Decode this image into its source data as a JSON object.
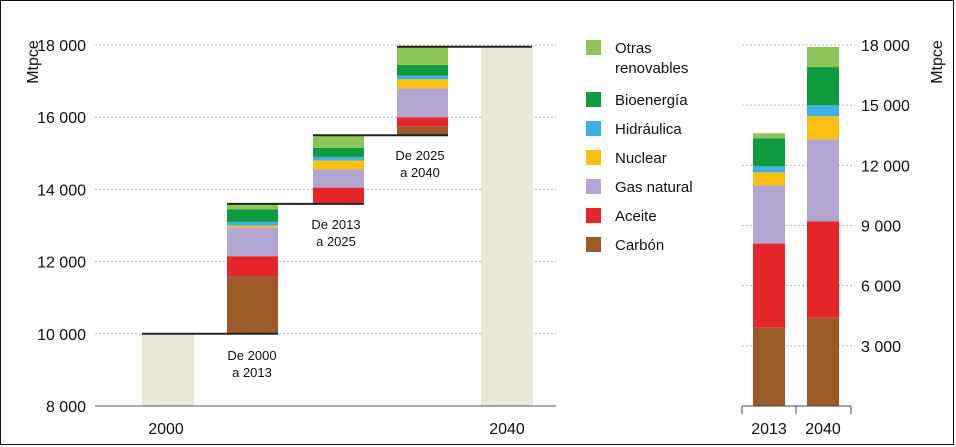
{
  "colors": {
    "carbon": "#9c5a28",
    "aceite": "#e4262b",
    "gas": "#b3a6d2",
    "nuclear": "#fcc012",
    "hidraulica": "#3db1e3",
    "bioenergia": "#0e9a3d",
    "otras": "#8cc55a",
    "total": "#e9e8db"
  },
  "legend": [
    {
      "key": "otras",
      "label_lines": [
        "Otras",
        "renovables"
      ]
    },
    {
      "key": "bioenergia",
      "label_lines": [
        "Bioenergía"
      ]
    },
    {
      "key": "hidraulica",
      "label_lines": [
        "Hidráulica"
      ]
    },
    {
      "key": "nuclear",
      "label_lines": [
        "Nuclear"
      ]
    },
    {
      "key": "gas",
      "label_lines": [
        "Gas natural"
      ]
    },
    {
      "key": "aceite",
      "label_lines": [
        "Aceite"
      ]
    },
    {
      "key": "carbon",
      "label_lines": [
        "Carbón"
      ]
    }
  ],
  "chart_data": [
    {
      "type": "bar",
      "subtype": "waterfall",
      "ylabel": "Mtpce",
      "ylim": [
        8000,
        18000
      ],
      "yticks": [
        "8 000",
        "10 000",
        "12 000",
        "14 000",
        "16 000",
        "18 000"
      ],
      "grid": true,
      "totals": [
        {
          "category": "2000",
          "value": 10000
        },
        {
          "category": "2040",
          "value": 17950
        }
      ],
      "steps": [
        {
          "label_lines": [
            "De 2000",
            "a 2013"
          ],
          "start": 10000,
          "segments": [
            {
              "key": "carbon",
              "value": 1600
            },
            {
              "key": "aceite",
              "value": 550
            },
            {
              "key": "gas",
              "value": 800
            },
            {
              "key": "nuclear",
              "value": 50
            },
            {
              "key": "hidraulica",
              "value": 100
            },
            {
              "key": "bioenergia",
              "value": 350
            },
            {
              "key": "otras",
              "value": 150
            }
          ]
        },
        {
          "label_lines": [
            "De 2013",
            "a 2025"
          ],
          "start": 13600,
          "segments": [
            {
              "key": "aceite",
              "value": 450
            },
            {
              "key": "gas",
              "value": 500
            },
            {
              "key": "nuclear",
              "value": 250
            },
            {
              "key": "hidraulica",
              "value": 100
            },
            {
              "key": "bioenergia",
              "value": 250
            },
            {
              "key": "otras",
              "value": 350
            }
          ]
        },
        {
          "label_lines": [
            "De 2025",
            "a 2040"
          ],
          "start": 15500,
          "segments": [
            {
              "key": "carbon",
              "value": 250
            },
            {
              "key": "aceite",
              "value": 250
            },
            {
              "key": "gas",
              "value": 800
            },
            {
              "key": "nuclear",
              "value": 250
            },
            {
              "key": "hidraulica",
              "value": 100
            },
            {
              "key": "bioenergia",
              "value": 300
            },
            {
              "key": "otras",
              "value": 500
            }
          ]
        }
      ],
      "x_ticks": [
        "2000",
        "2040"
      ]
    },
    {
      "type": "bar",
      "subtype": "stacked",
      "ylabel": "Mtpce",
      "ylim": [
        0,
        18000
      ],
      "yticks": [
        "3 000",
        "6 000",
        "9 000",
        "12 000",
        "15 000",
        "18 000"
      ],
      "categories": [
        "2013",
        "2040"
      ],
      "series": [
        {
          "key": "carbon",
          "values": [
            3900,
            4400
          ]
        },
        {
          "key": "aceite",
          "values": [
            4200,
            4800
          ]
        },
        {
          "key": "gas",
          "values": [
            2900,
            4100
          ]
        },
        {
          "key": "nuclear",
          "values": [
            650,
            1150
          ]
        },
        {
          "key": "hidraulica",
          "values": [
            300,
            550
          ]
        },
        {
          "key": "bioenergia",
          "values": [
            1400,
            1900
          ]
        },
        {
          "key": "otras",
          "values": [
            250,
            1000
          ]
        }
      ]
    }
  ]
}
